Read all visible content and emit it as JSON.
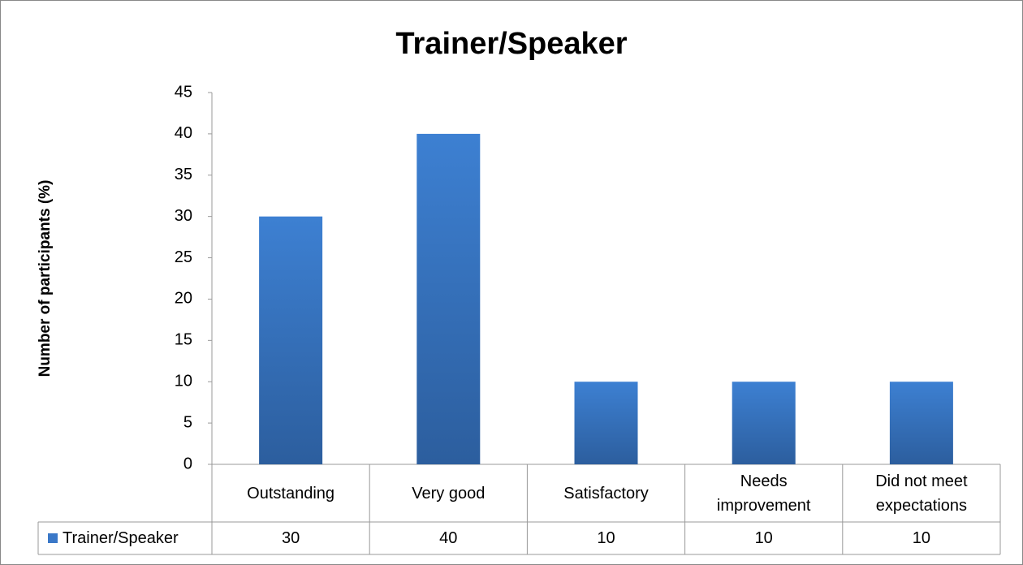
{
  "chart_data": {
    "type": "bar",
    "title": "Trainer/Speaker",
    "y_label": "Number of participants (%)",
    "categories": [
      "Outstanding",
      "Very good",
      "Satisfactory",
      "Needs improvement",
      "Did not meet expectations"
    ],
    "series": [
      {
        "name": "Trainer/Speaker",
        "color": "#3a78c8",
        "values": [
          30,
          40,
          10,
          10,
          10
        ]
      }
    ],
    "ylim": [
      0,
      45
    ],
    "yticks": [
      0,
      5,
      10,
      15,
      20,
      25,
      30,
      35,
      40,
      45
    ],
    "grid": false
  }
}
